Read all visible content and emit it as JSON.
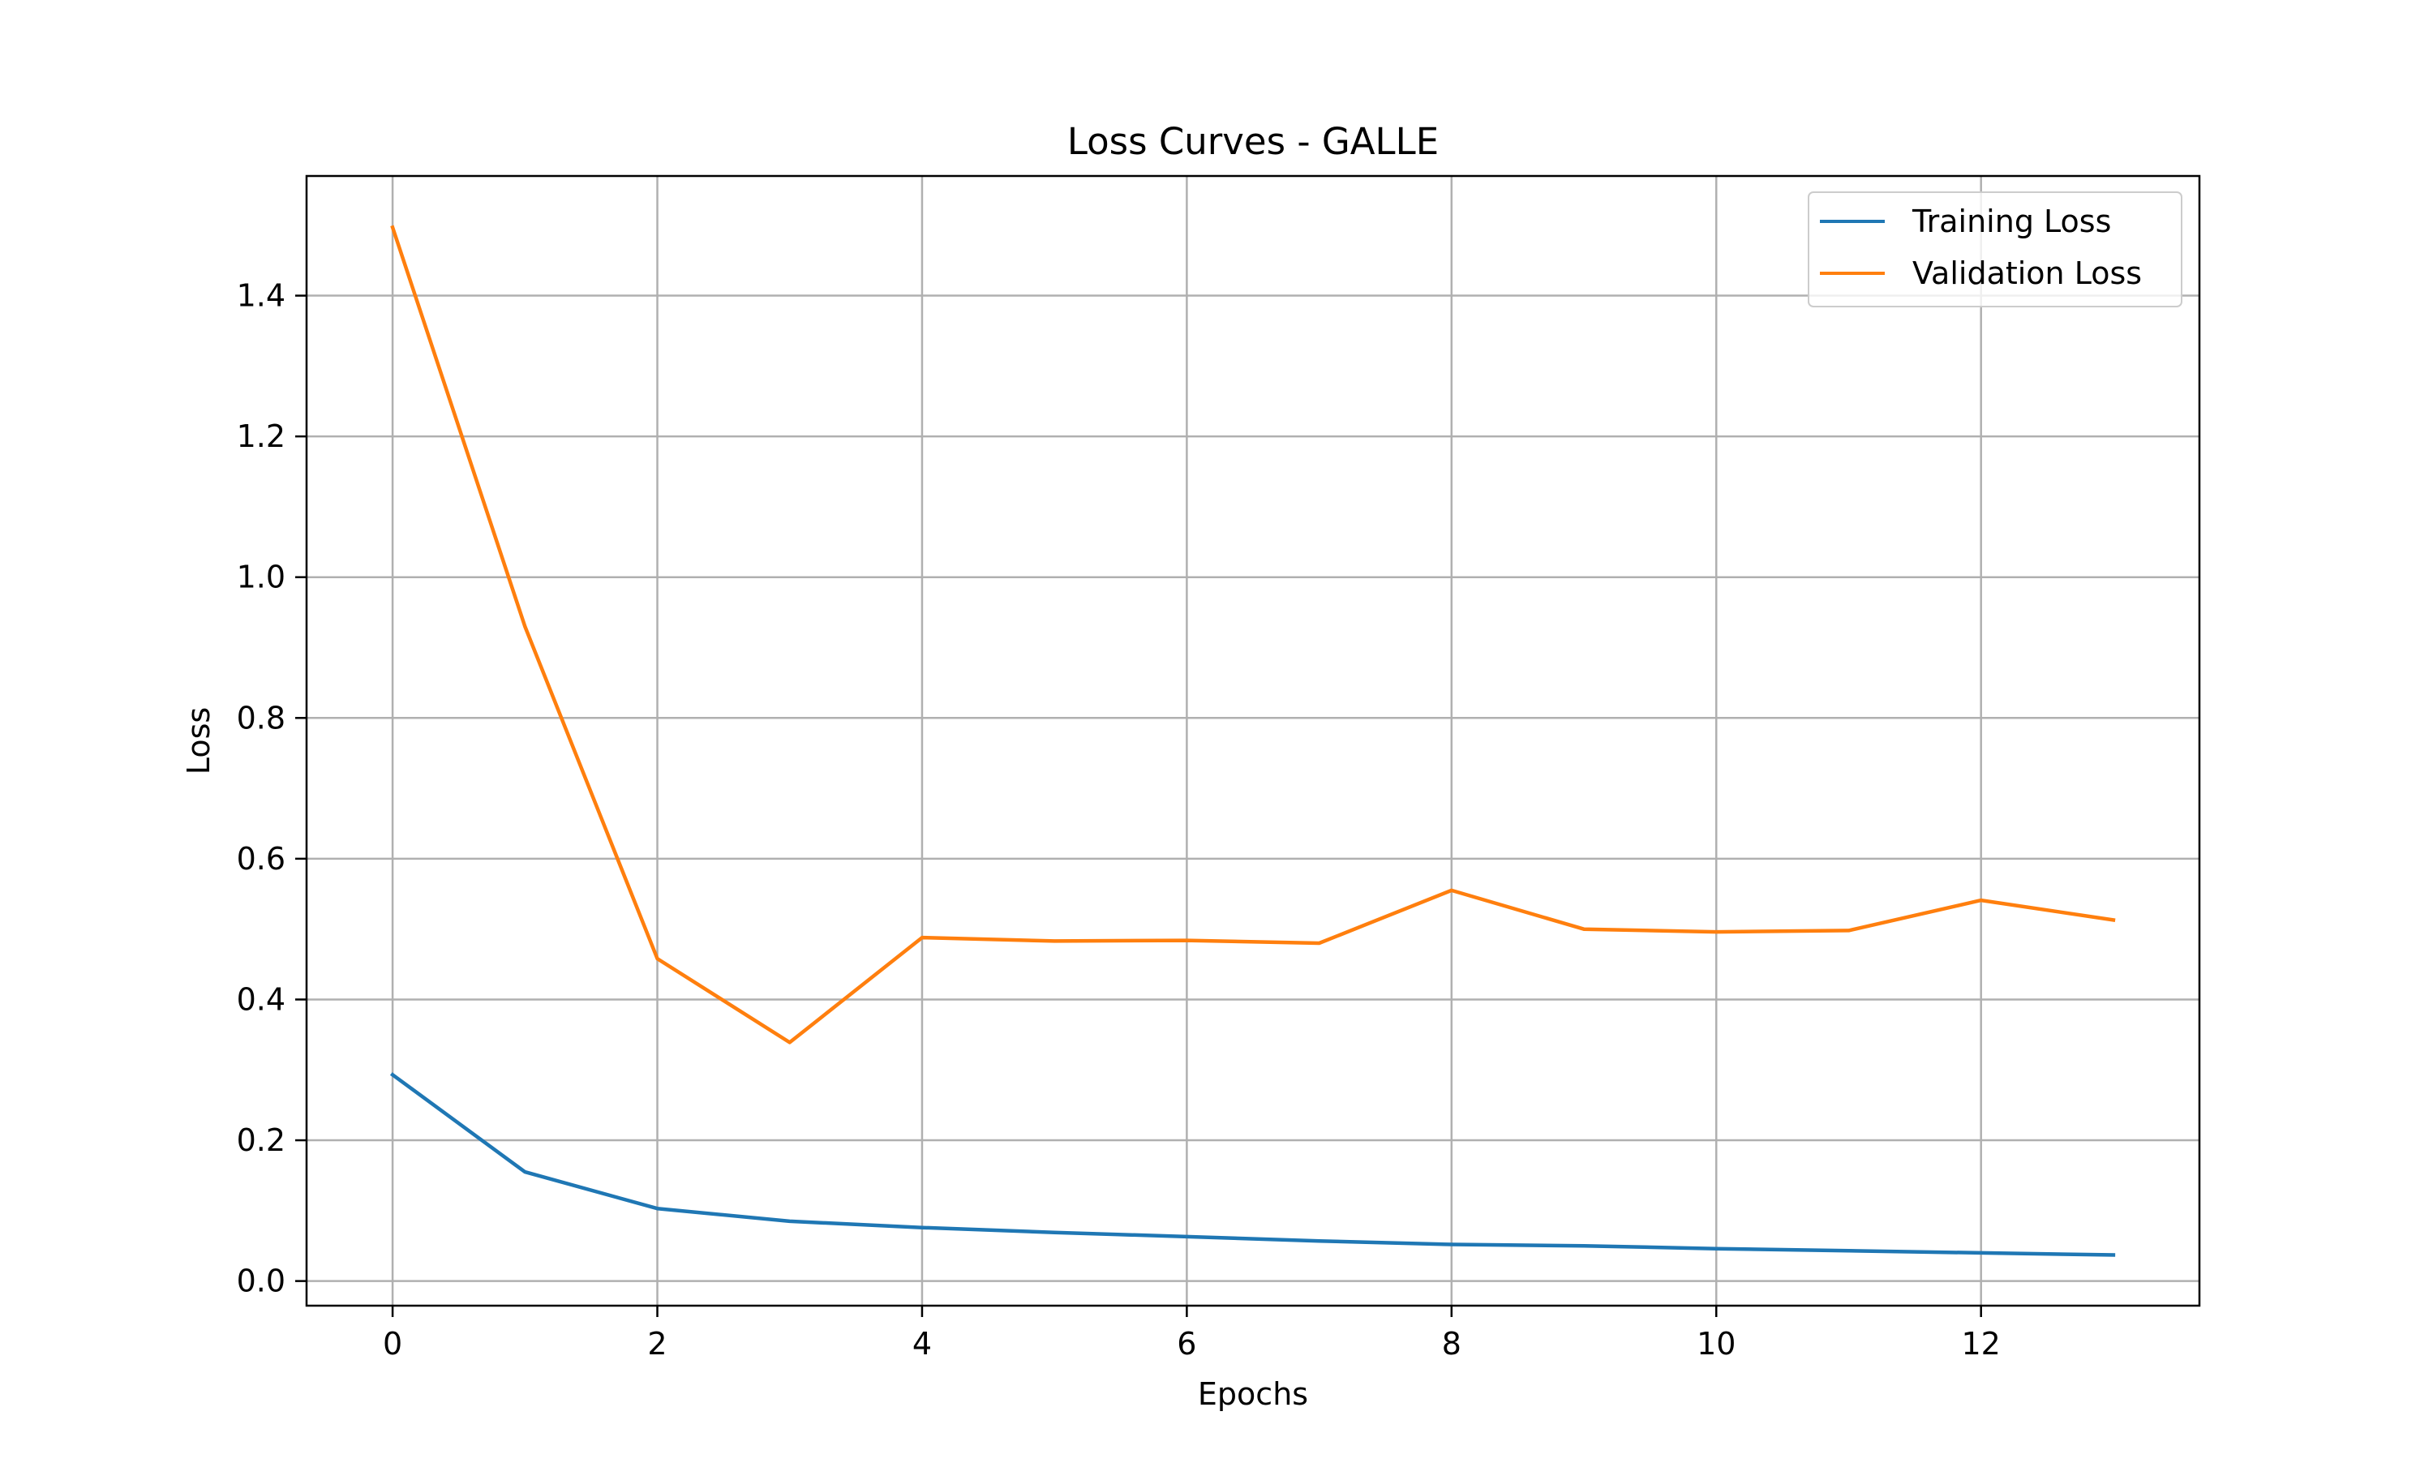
{
  "chart_data": {
    "type": "line",
    "title": "Loss Curves - GALLE",
    "xlabel": "Epochs",
    "ylabel": "Loss",
    "x": [
      0,
      1,
      2,
      3,
      4,
      5,
      6,
      7,
      8,
      9,
      10,
      11,
      12,
      13
    ],
    "xlim": [
      -0.65,
      13.65
    ],
    "ylim": [
      -0.035,
      1.57
    ],
    "xticks": [
      0,
      2,
      4,
      6,
      8,
      10,
      12
    ],
    "xtick_labels": [
      "0",
      "2",
      "4",
      "6",
      "8",
      "10",
      "12"
    ],
    "yticks": [
      0.0,
      0.2,
      0.4,
      0.6,
      0.8,
      1.0,
      1.2,
      1.4
    ],
    "ytick_labels": [
      "0.0",
      "0.2",
      "0.4",
      "0.6",
      "0.8",
      "1.0",
      "1.2",
      "1.4"
    ],
    "grid": true,
    "legend_position": "top-right",
    "series": [
      {
        "name": "Training Loss",
        "color": "#1f77b4",
        "values": [
          0.293,
          0.155,
          0.103,
          0.085,
          0.076,
          0.069,
          0.063,
          0.057,
          0.052,
          0.05,
          0.046,
          0.043,
          0.04,
          0.037
        ]
      },
      {
        "name": "Validation Loss",
        "color": "#ff7f0e",
        "values": [
          1.497,
          0.93,
          0.458,
          0.339,
          0.488,
          0.483,
          0.484,
          0.48,
          0.555,
          0.5,
          0.496,
          0.498,
          0.541,
          0.513
        ]
      }
    ],
    "colors": {
      "grid": "#b0b0b0",
      "axes": "#000000",
      "legend_border": "#cccccc"
    }
  }
}
